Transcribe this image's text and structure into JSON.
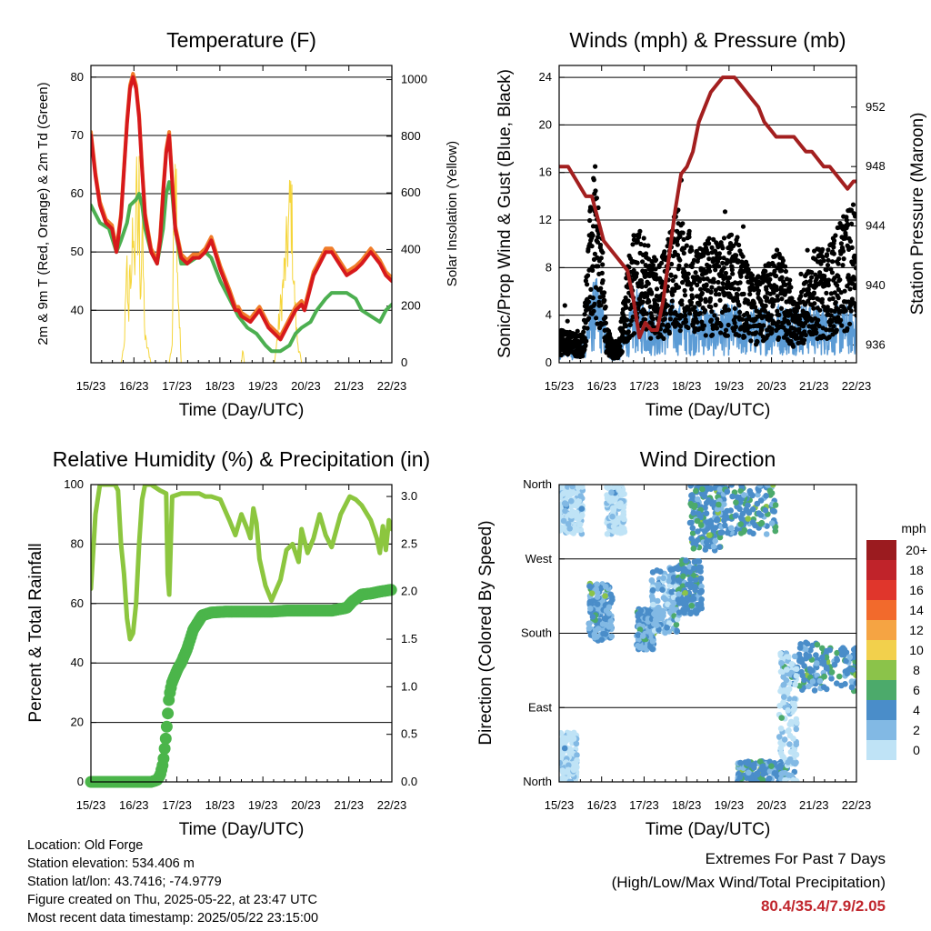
{
  "x_ticks": [
    "15/23",
    "16/23",
    "17/23",
    "18/23",
    "19/23",
    "20/23",
    "21/23",
    "22/23"
  ],
  "colors": {
    "temp2m": "#d7191c",
    "temp9m": "#f07c2a",
    "dew": "#4caf50",
    "solar": "#f5d53a",
    "wind": "#5b9bd5",
    "gust": "#000000",
    "pressure": "#a31f1f",
    "rh": "#8cc63f",
    "precip": "#4bb54a"
  },
  "chart_data": [
    {
      "type": "line",
      "title": "Temperature (F)",
      "xlabel": "Time (Day/UTC)",
      "ylabel": "2m & 9m T (Red, Orange) & 2m Td (Green)",
      "ylabel_right": "Solar Insolation (Yellow)",
      "ylim": [
        31,
        82
      ],
      "y_ticks": [
        40,
        50,
        60,
        70,
        80
      ],
      "ylim_right": [
        0,
        1050
      ],
      "y_ticks_right": [
        0,
        200,
        400,
        600,
        800,
        1000
      ],
      "grid": true,
      "series": [
        {
          "key": "temp",
          "x": [
            0,
            0.15,
            0.3,
            0.5,
            0.7,
            0.85,
            1,
            1.1,
            1.2,
            1.3,
            1.4,
            1.5,
            1.6,
            1.7,
            1.8,
            2,
            2.2,
            2.3,
            2.4,
            2.5,
            2.6,
            2.7,
            2.8,
            3,
            3.2,
            3.4,
            3.6,
            3.8,
            4,
            4.3,
            4.6,
            4.8,
            4.9,
            5,
            5.3,
            5.6,
            5.9,
            6.1,
            6.3,
            6.6,
            6.8,
            7,
            7.1,
            7.2,
            7.3,
            7.4,
            7.5,
            7.6,
            7.7,
            7.8,
            8,
            8.5,
            8.8,
            9,
            9.3,
            9.6,
            9.8,
            10
          ],
          "y": [
            70,
            63,
            58,
            55,
            54,
            50,
            56,
            64,
            72,
            78,
            80,
            78,
            73,
            64,
            56,
            50,
            48,
            52,
            60,
            67,
            70,
            62,
            54,
            49,
            48,
            49,
            49,
            50,
            52,
            47,
            43,
            40,
            40,
            39,
            38,
            40,
            37,
            36,
            35,
            38,
            40,
            41,
            40,
            42,
            44,
            46,
            47,
            48,
            49,
            50,
            50,
            46,
            47,
            48,
            50,
            48,
            46,
            45
          ]
        },
        {
          "key": "dew",
          "x": [
            0,
            0.3,
            0.6,
            0.85,
            1,
            1.2,
            1.3,
            1.5,
            1.6,
            1.7,
            1.8,
            2,
            2.2,
            2.4,
            2.5,
            2.6,
            2.7,
            2.8,
            3,
            3.2,
            3.5,
            3.8,
            4,
            4.3,
            4.6,
            4.9,
            5.2,
            5.5,
            5.8,
            6,
            6.3,
            6.6,
            6.8,
            7,
            7.3,
            7.5,
            7.8,
            8,
            8.5,
            8.8,
            9,
            9.3,
            9.6,
            9.8,
            10
          ],
          "y": [
            58,
            55,
            54,
            50,
            52,
            55,
            58,
            59,
            60,
            58,
            54,
            50,
            48,
            54,
            60,
            62,
            60,
            54,
            48,
            48,
            49,
            50,
            49,
            45,
            42,
            39,
            37,
            36,
            34,
            33,
            33,
            34,
            36,
            37,
            38,
            40,
            42,
            43,
            43,
            42,
            40,
            39,
            38,
            40,
            41
          ]
        },
        {
          "key": "solar",
          "x": [
            0,
            0.6,
            1,
            1.1,
            1.2,
            1.25,
            1.3,
            1.35,
            1.4,
            1.45,
            1.5,
            1.55,
            1.6,
            1.65,
            1.7,
            1.8,
            2,
            2.2,
            2.4,
            2.6,
            2.7,
            2.75,
            2.8,
            2.85,
            2.9,
            3,
            3.2,
            3.4,
            3.7,
            3.9,
            4.1,
            4.3,
            4.6,
            4.9,
            5,
            5.05,
            5.1,
            5.3,
            5.6,
            5.9,
            6.1,
            6.3,
            6.5,
            6.65,
            6.75,
            6.85,
            7,
            7.3,
            7.6,
            7.9,
            8.1,
            8.3,
            8.5,
            8.7,
            8.9,
            9,
            9.3,
            9.6,
            9.9,
            10
          ],
          "y": [
            0,
            0,
            0,
            60,
            380,
            150,
            500,
            220,
            660,
            300,
            820,
            420,
            700,
            260,
            550,
            100,
            0,
            0,
            0,
            0,
            80,
            500,
            1000,
            650,
            300,
            0,
            0,
            0,
            0,
            0,
            0,
            0,
            0,
            0,
            0,
            50,
            0,
            0,
            0,
            0,
            0,
            220,
            450,
            680,
            300,
            100,
            0,
            0,
            0,
            0,
            0,
            0,
            0,
            0,
            0,
            0,
            0,
            0,
            0,
            0
          ]
        }
      ]
    },
    {
      "type": "scatter",
      "title": "Winds (mph) & Pressure (mb)",
      "xlabel": "Time (Day/UTC)",
      "ylabel": "Sonic/Prop Wind & Gust (Blue, Black)",
      "ylabel_right": "Station Pressure (Maroon)",
      "ylim": [
        0,
        25
      ],
      "y_ticks": [
        0,
        4,
        8,
        12,
        16,
        20,
        24
      ],
      "ylim_right": [
        934.8,
        954.8
      ],
      "y_ticks_right": [
        936,
        940,
        944,
        948,
        952
      ],
      "grid": true,
      "wind_envelope": {
        "x": [
          0,
          0.6,
          0.8,
          1,
          1.2,
          1.4,
          1.6,
          1.8,
          2,
          2.3,
          2.6,
          3,
          3.4,
          3.8,
          4,
          4.4,
          4.8,
          5,
          5.2,
          5.6,
          6,
          6.3,
          6.6,
          7,
          7.3,
          7.6,
          8,
          8.5,
          9,
          9.5,
          10
        ],
        "y": [
          2,
          1.5,
          1.5,
          4,
          6,
          5,
          2,
          1,
          1,
          3,
          5,
          4,
          3.5,
          4.5,
          4,
          4,
          4,
          4,
          3.5,
          4,
          4,
          3.5,
          3.8,
          4,
          4.2,
          4,
          4.2,
          4,
          4,
          4,
          4
        ]
      },
      "gust_envelope": {
        "x": [
          0,
          0.6,
          0.8,
          1,
          1.2,
          1.4,
          1.6,
          1.8,
          2,
          2.3,
          2.6,
          3,
          3.4,
          3.8,
          4,
          4.4,
          4.8,
          5,
          5.2,
          5.6,
          6,
          6.3,
          6.6,
          7,
          7.3,
          7.6,
          8,
          8.5,
          9,
          9.5,
          10
        ],
        "y": [
          2.5,
          2,
          2,
          10,
          14,
          10,
          3,
          1.5,
          1.5,
          7,
          10,
          8,
          7,
          10,
          11,
          9,
          8,
          9,
          8,
          9,
          9,
          7,
          6,
          7,
          8,
          7,
          4,
          8,
          8,
          10,
          12
        ]
      },
      "series": [
        {
          "key": "pressure",
          "x": [
            0,
            0.3,
            0.6,
            0.9,
            1.1,
            1.3,
            1.5,
            1.7,
            1.9,
            2.1,
            2.3,
            2.5,
            2.7,
            2.9,
            3.1,
            3.3,
            3.5,
            3.7,
            3.9,
            4.1,
            4.3,
            4.5,
            4.7,
            4.9,
            5.1,
            5.3,
            5.5,
            5.7,
            5.9,
            6.1,
            6.3,
            6.5,
            6.7,
            6.9,
            7.1,
            7.3,
            7.5,
            7.7,
            7.9,
            8.1,
            8.3,
            8.5,
            8.7,
            8.9,
            9.1,
            9.3,
            9.5,
            9.7,
            9.9,
            10
          ],
          "y": [
            948,
            948,
            947,
            946,
            946,
            944.5,
            943,
            942.5,
            942,
            941.5,
            941,
            939,
            936.5,
            937.5,
            937,
            937,
            939,
            942,
            945,
            947.5,
            948,
            949,
            951,
            952,
            953,
            953.5,
            954,
            954,
            954,
            953.5,
            953,
            952.5,
            952,
            951,
            950.5,
            950,
            950,
            950,
            950,
            949.5,
            949,
            949,
            948.5,
            948,
            948,
            947.5,
            947,
            946.5,
            947,
            947
          ]
        }
      ]
    },
    {
      "type": "line",
      "title": "Relative Humidity (%) & Precipitation (in)",
      "xlabel": "Time (Day/UTC)",
      "ylabel": "Percent & Total Rainfall",
      "ylim": [
        0,
        100
      ],
      "y_ticks": [
        0,
        20,
        40,
        60,
        80,
        100
      ],
      "ylim_right": [
        0,
        3.125
      ],
      "y_ticks_right": [
        0.0,
        0.5,
        1.0,
        1.5,
        2.0,
        2.5,
        3.0
      ],
      "y_ticks_right_labels": [
        "0.0",
        "0.5",
        "1.0",
        "1.5",
        "2.0",
        "2.5",
        "3.0"
      ],
      "grid": true,
      "series": [
        {
          "key": "rh",
          "x": [
            0,
            0.15,
            0.3,
            0.45,
            0.6,
            0.8,
            0.9,
            1,
            1.1,
            1.2,
            1.3,
            1.4,
            1.5,
            1.6,
            1.7,
            1.8,
            2,
            2.3,
            2.5,
            2.55,
            2.6,
            2.7,
            3,
            3.3,
            3.6,
            3.8,
            4,
            4.3,
            4.6,
            4.8,
            5,
            5.2,
            5.3,
            5.4,
            5.5,
            5.6,
            5.8,
            6,
            6.3,
            6.5,
            6.7,
            6.9,
            7,
            7.2,
            7.4,
            7.6,
            7.8,
            8,
            8.3,
            8.6,
            8.8,
            9,
            9.3,
            9.5,
            9.6,
            9.7,
            9.8,
            9.9,
            10
          ],
          "y": [
            65,
            90,
            100,
            100,
            100,
            100,
            98,
            80,
            70,
            55,
            48,
            50,
            60,
            80,
            95,
            100,
            100,
            98,
            97,
            70,
            63,
            96,
            97,
            97,
            97,
            96,
            96,
            95,
            88,
            83,
            90,
            85,
            82,
            92,
            87,
            75,
            66,
            61,
            68,
            78,
            80,
            74,
            85,
            77,
            82,
            90,
            83,
            79,
            90,
            96,
            95,
            93,
            88,
            82,
            77,
            86,
            78,
            88,
            85
          ]
        },
        {
          "key": "precip",
          "x": [
            0,
            0.5,
            1,
            1.5,
            2,
            2.2,
            2.3,
            2.4,
            2.5,
            2.6,
            2.7,
            2.9,
            3,
            3.2,
            3.4,
            3.7,
            4,
            4.5,
            5,
            5.5,
            6,
            6.5,
            7,
            7.5,
            8,
            8.5,
            8.7,
            9,
            9.3,
            9.6,
            10
          ],
          "y": [
            0,
            0,
            0,
            0,
            0,
            0.02,
            0.07,
            0.2,
            0.5,
            0.9,
            1.05,
            1.2,
            1.25,
            1.4,
            1.6,
            1.75,
            1.78,
            1.79,
            1.79,
            1.79,
            1.79,
            1.8,
            1.8,
            1.8,
            1.8,
            1.83,
            1.9,
            1.97,
            1.98,
            2.0,
            2.02
          ]
        }
      ]
    },
    {
      "type": "scatter",
      "title": "Wind Direction",
      "xlabel": "Time (Day/UTC)",
      "ylabel": "Direction (Colored By Speed)",
      "ylim": [
        0,
        360
      ],
      "y_ticks": [
        0,
        90,
        180,
        270,
        360
      ],
      "y_tick_labels": [
        "North",
        "East",
        "South",
        "West",
        "North"
      ],
      "grid": true,
      "clusters": [
        {
          "x": [
            0,
            0.8
          ],
          "y": [
            300,
            360
          ],
          "speed": 0
        },
        {
          "x": [
            1.6,
            2.2
          ],
          "y": [
            300,
            360
          ],
          "speed": 0
        },
        {
          "x": [
            1,
            1.8
          ],
          "y": [
            170,
            240
          ],
          "speed": 3
        },
        {
          "x": [
            2.6,
            3.2
          ],
          "y": [
            160,
            210
          ],
          "speed": 3
        },
        {
          "x": [
            3.1,
            4
          ],
          "y": [
            180,
            260
          ],
          "speed": 2
        },
        {
          "x": [
            4,
            4.8
          ],
          "y": [
            200,
            270
          ],
          "speed": 4
        },
        {
          "x": [
            4.4,
            5.5
          ],
          "y": [
            280,
            360
          ],
          "speed": 4
        },
        {
          "x": [
            5.3,
            7.3
          ],
          "y": [
            300,
            360
          ],
          "speed": 4
        },
        {
          "x": [
            6,
            7.7
          ],
          "y": [
            0,
            25
          ],
          "speed": 4
        },
        {
          "x": [
            8,
            10
          ],
          "y": [
            110,
            170
          ],
          "speed": 4
        },
        {
          "x": [
            0,
            0.6
          ],
          "y": [
            0,
            60
          ],
          "speed": 0
        },
        {
          "x": [
            7.4,
            8
          ],
          "y": [
            0,
            160
          ],
          "speed": 1
        }
      ],
      "colorbar": {
        "title": "mph",
        "labels": [
          "20+",
          "18",
          "16",
          "14",
          "12",
          "10",
          "8",
          "6",
          "4",
          "2",
          "0"
        ],
        "colors": [
          "#9b1b1f",
          "#c0232a",
          "#e0362c",
          "#f26a2c",
          "#f5a443",
          "#f2d04c",
          "#8bc34a",
          "#4caa6b",
          "#4a8dc9",
          "#82b9e4",
          "#bfe3f6"
        ]
      }
    }
  ],
  "info": {
    "location": "Location: Old Forge",
    "elevation": "Station elevation: 534.406 m",
    "latlon": "Station lat/lon: 43.7416; -74.9779",
    "created": "Figure created on Thu, 2025-05-22, at 23:47 UTC",
    "recent": "Most recent data timestamp: 2025/05/22 23:15:00"
  },
  "extremes": {
    "line1": "Extremes For Past 7 Days",
    "line2": "(High/Low/Max Wind/Total Precipitation)",
    "value": "80.4/35.4/7.9/2.05"
  }
}
